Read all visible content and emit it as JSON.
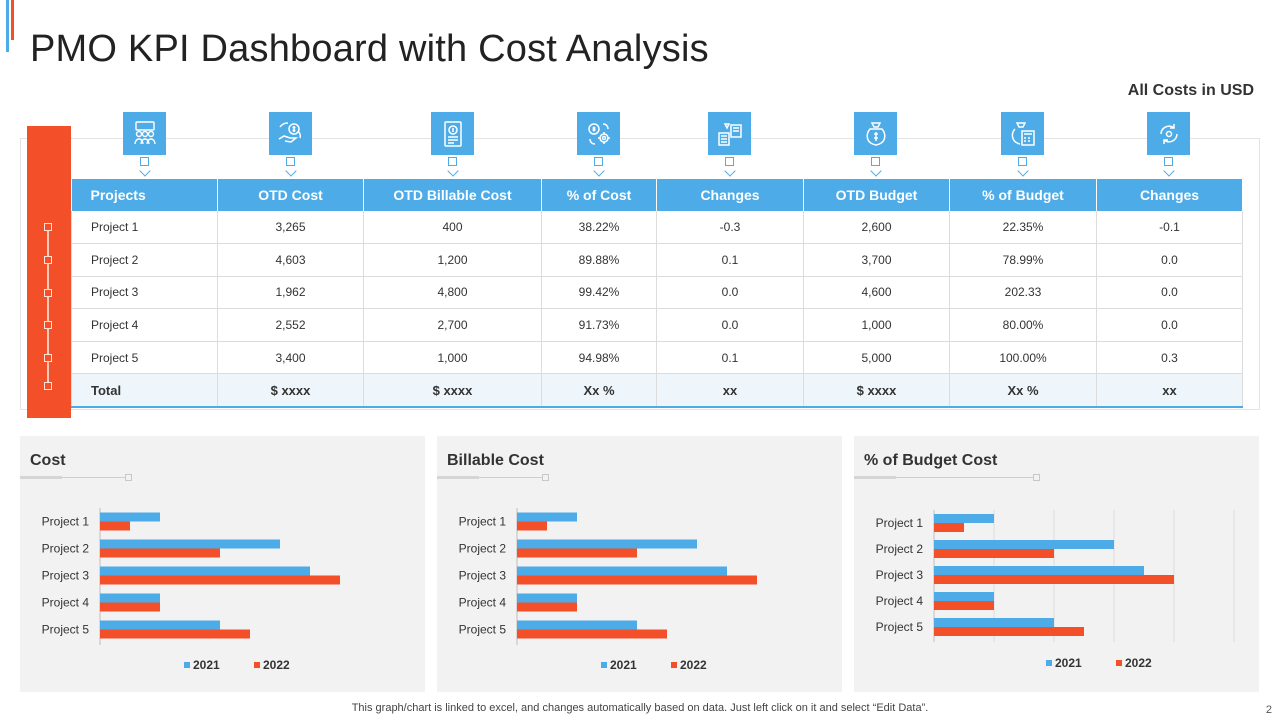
{
  "title": "PMO KPI Dashboard with Cost Analysis",
  "currency_note": "All Costs in USD",
  "colors": {
    "blue": "#4dabe8",
    "orange": "#f34f28",
    "panel": "#f2f2f2"
  },
  "icons": [
    "team-icon",
    "money-exchange-icon",
    "invoice-icon",
    "cost-gears-icon",
    "changes-icon",
    "budget-bag-icon",
    "budget-calculator-icon",
    "refresh-cycle-icon"
  ],
  "table": {
    "headers": [
      "Projects",
      "OTD Cost",
      "OTD  Billable Cost",
      "% of Cost",
      "Changes",
      "OTD Budget",
      "% of Budget",
      "Changes"
    ],
    "rows": [
      [
        "Project 1",
        "3,265",
        "400",
        "38.22%",
        "-0.3",
        "2,600",
        "22.35%",
        "-0.1"
      ],
      [
        "Project 2",
        "4,603",
        "1,200",
        "89.88%",
        "0.1",
        "3,700",
        "78.99%",
        "0.0"
      ],
      [
        "Project 3",
        "1,962",
        "4,800",
        "99.42%",
        "0.0",
        "4,600",
        "202.33",
        "0.0"
      ],
      [
        "Project 4",
        "2,552",
        "2,700",
        "91.73%",
        "0.0",
        "1,000",
        "80.00%",
        "0.0"
      ],
      [
        "Project 5",
        "3,400",
        "1,000",
        "94.98%",
        "0.1",
        "5,000",
        "100.00%",
        "0.3"
      ]
    ],
    "total": [
      "Total",
      "$ xxxx",
      "$ xxxx",
      "Xx %",
      "xx",
      "$ xxxx",
      "Xx %",
      "xx"
    ]
  },
  "chart_data": [
    {
      "type": "bar",
      "orientation": "horizontal",
      "title": "Cost",
      "categories": [
        "Project 1",
        "Project 2",
        "Project 3",
        "Project 4",
        "Project 5"
      ],
      "series": [
        {
          "name": "2021",
          "color": "#4dabe8",
          "values": [
            2,
            6,
            7,
            2,
            4
          ]
        },
        {
          "name": "2022",
          "color": "#f34f28",
          "values": [
            1,
            4,
            8,
            2,
            5
          ]
        }
      ],
      "xlim": [
        0,
        10
      ],
      "grid": false,
      "legend": "bottom"
    },
    {
      "type": "bar",
      "orientation": "horizontal",
      "title": "Billable Cost",
      "categories": [
        "Project 1",
        "Project 2",
        "Project 3",
        "Project 4",
        "Project 5"
      ],
      "series": [
        {
          "name": "2021",
          "color": "#4dabe8",
          "values": [
            2,
            6,
            7,
            2,
            4
          ]
        },
        {
          "name": "2022",
          "color": "#f34f28",
          "values": [
            1,
            4,
            8,
            2,
            5
          ]
        }
      ],
      "xlim": [
        0,
        10
      ],
      "grid": false,
      "legend": "bottom"
    },
    {
      "type": "bar",
      "orientation": "horizontal",
      "title": "% of Budget  Cost",
      "categories": [
        "Project 1",
        "Project 2",
        "Project 3",
        "Project 4",
        "Project 5"
      ],
      "series": [
        {
          "name": "2021",
          "color": "#4dabe8",
          "values": [
            2,
            6,
            7,
            2,
            4
          ]
        },
        {
          "name": "2022",
          "color": "#f34f28",
          "values": [
            1,
            4,
            8,
            2,
            5
          ]
        }
      ],
      "xlim": [
        0,
        10
      ],
      "grid": true,
      "legend": "bottom"
    }
  ],
  "footnote": "This graph/chart is linked to excel,  and changes automatically based on data. Just left click on it and select “Edit Data”.",
  "page_number": "2"
}
